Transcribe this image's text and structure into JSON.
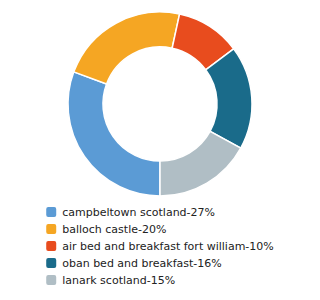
{
  "chart_data": {
    "type": "pie",
    "values": [
      27,
      20,
      10,
      16,
      15
    ],
    "value_labels": [
      "campbeltown scotland-27%",
      "balloch castle-20%",
      "air bed and breakfast fort william-10%",
      "oban bed and breakfast-16%",
      "lanark scotland-15%"
    ],
    "colors": [
      "#5b9bd5",
      "#f5a623",
      "#e84c1e",
      "#1a6b8a",
      "#b0bec5"
    ],
    "data_labels": true
  }
}
